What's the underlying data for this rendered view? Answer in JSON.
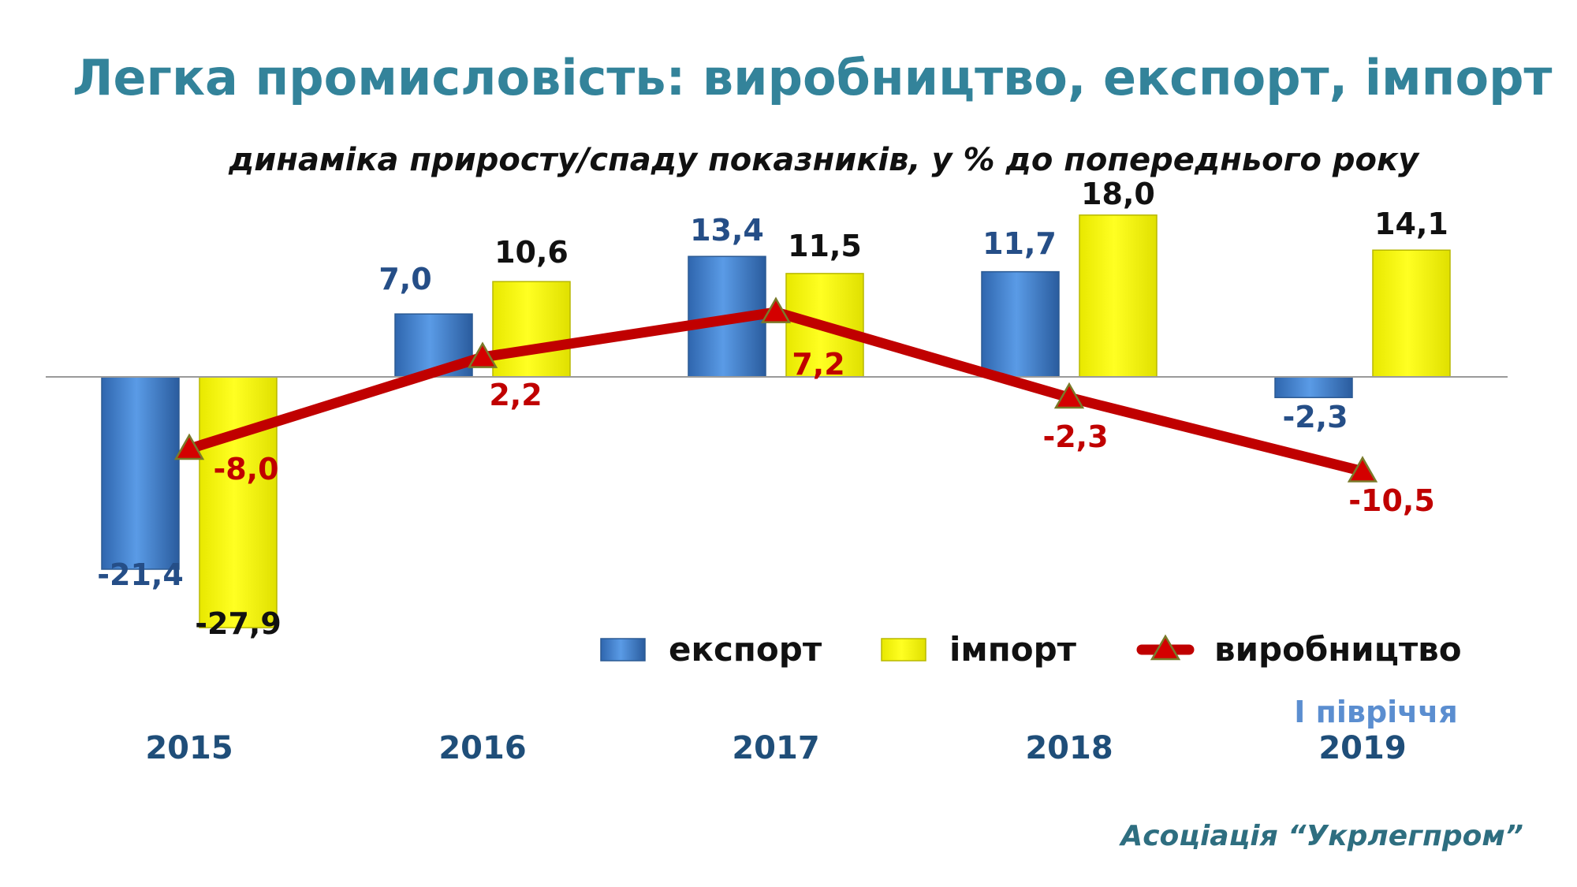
{
  "title": "Легка промисловість: виробництво, експорт, імпорт",
  "subtitle": "динаміка приросту/спаду показників, у % до попереднього  року",
  "attribution": "Асоціація “Укрлегпром”",
  "colors": {
    "title": "#33839A",
    "export": "#3F7FCB",
    "import": "#FFFF00",
    "production": "#C00000",
    "export_label": "#254E87",
    "import_label": "#111111",
    "production_label": "#C00000",
    "category_label": "#1F4E79",
    "note": "#5B8ED0"
  },
  "chart_data": {
    "type": "bar",
    "categories": [
      "2015",
      "2016",
      "2017",
      "2018",
      "2019"
    ],
    "category_note": {
      "category": "2019",
      "text": "І півріччя"
    },
    "series": [
      {
        "name": "експорт",
        "type": "bar",
        "values": [
          -21.4,
          7.0,
          13.4,
          11.7,
          -2.3
        ],
        "labels": [
          "-21,4",
          "7,0",
          "13,4",
          "11,7",
          "-2,3"
        ]
      },
      {
        "name": "імпорт",
        "type": "bar",
        "values": [
          -27.9,
          10.6,
          11.5,
          18.0,
          14.1
        ],
        "labels": [
          "-27,9",
          "10,6",
          "11,5",
          "18,0",
          "14,1"
        ]
      },
      {
        "name": "виробництво",
        "type": "line",
        "marker": "triangle",
        "values": [
          -8.0,
          2.2,
          7.2,
          -2.3,
          -10.5
        ],
        "labels": [
          "-8,0",
          "2,2",
          "7,2",
          "-2,3",
          "-10,5"
        ]
      }
    ],
    "ylim": [
      -30,
      20
    ],
    "grid": false,
    "legend": "bottom-right"
  }
}
